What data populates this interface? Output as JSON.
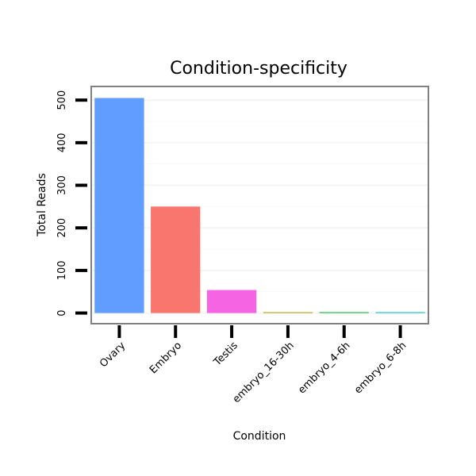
{
  "chart_data": {
    "type": "bar",
    "title": "Condition-specificity",
    "xlabel": "Condition",
    "ylabel": "Total Reads",
    "categories": [
      "Ovary",
      "Embryo",
      "Testis",
      "embryo_16-30h",
      "embryo_4-6h",
      "embryo_6-8h"
    ],
    "values": [
      505,
      250,
      54,
      2,
      2,
      2
    ],
    "colors": [
      "#619CFF",
      "#F8766D",
      "#F564E3",
      "#B79F00",
      "#00BA38",
      "#00BFC4"
    ],
    "yticks": [
      0,
      100,
      200,
      300,
      400,
      500
    ],
    "ylim": [
      -25,
      532
    ],
    "grid": true,
    "legend": "none"
  }
}
